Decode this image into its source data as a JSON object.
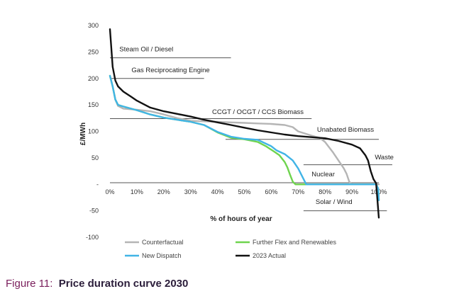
{
  "figure_caption": {
    "number": "Figure 11:",
    "title": "Price duration curve 2030"
  },
  "colors": {
    "counterfactual": "#b5b5b5",
    "further_flex": "#6fd44e",
    "new_dispatch": "#41b4e6",
    "actual_2023": "#111111",
    "caption_number": "#7a1f5c",
    "caption_title": "#2b1d3a"
  },
  "chart_data": {
    "type": "line",
    "title": "",
    "xlabel": "% of hours of year",
    "ylabel": "£/MWh",
    "xlim": [
      0,
      100
    ],
    "ylim": [
      -100,
      300
    ],
    "x_ticks": [
      "0%",
      "10%",
      "20%",
      "30%",
      "40%",
      "50%",
      "60%",
      "70%",
      "80%",
      "90%",
      "100%"
    ],
    "y_ticks": [
      "300",
      "250",
      "200",
      "150",
      "100",
      "50",
      "-",
      "-50",
      "-100"
    ],
    "grid": false,
    "legend_position": "bottom",
    "series": [
      {
        "name": "Counterfactual",
        "color": "#b5b5b5",
        "points": [
          [
            0,
            205
          ],
          [
            1,
            185
          ],
          [
            2,
            160
          ],
          [
            3,
            148
          ],
          [
            5,
            143
          ],
          [
            10,
            141
          ],
          [
            15,
            138
          ],
          [
            20,
            132
          ],
          [
            25,
            125
          ],
          [
            30,
            120
          ],
          [
            35,
            119
          ],
          [
            40,
            118
          ],
          [
            45,
            117
          ],
          [
            50,
            116
          ],
          [
            55,
            115
          ],
          [
            60,
            114
          ],
          [
            65,
            112
          ],
          [
            68,
            108
          ],
          [
            70,
            100
          ],
          [
            75,
            92
          ],
          [
            78,
            88
          ],
          [
            80,
            80
          ],
          [
            83,
            60
          ],
          [
            85,
            45
          ],
          [
            87,
            30
          ],
          [
            88,
            20
          ],
          [
            89,
            5
          ],
          [
            90,
            0
          ],
          [
            100,
            0
          ]
        ]
      },
      {
        "name": "Further Flex and Renewables",
        "color": "#6fd44e",
        "points": [
          [
            0,
            205
          ],
          [
            1,
            185
          ],
          [
            2,
            160
          ],
          [
            3,
            150
          ],
          [
            5,
            147
          ],
          [
            10,
            140
          ],
          [
            15,
            132
          ],
          [
            20,
            126
          ],
          [
            25,
            122
          ],
          [
            30,
            118
          ],
          [
            35,
            112
          ],
          [
            40,
            98
          ],
          [
            45,
            88
          ],
          [
            50,
            85
          ],
          [
            55,
            80
          ],
          [
            58,
            72
          ],
          [
            61,
            62
          ],
          [
            63,
            55
          ],
          [
            65,
            42
          ],
          [
            66,
            32
          ],
          [
            67,
            18
          ],
          [
            68,
            5
          ],
          [
            69,
            0
          ],
          [
            99,
            0
          ],
          [
            99.8,
            -8
          ],
          [
            100,
            -30
          ]
        ]
      },
      {
        "name": "New Dispatch",
        "color": "#41b4e6",
        "points": [
          [
            0,
            205
          ],
          [
            1,
            185
          ],
          [
            2,
            160
          ],
          [
            3,
            150
          ],
          [
            5,
            147
          ],
          [
            10,
            140
          ],
          [
            15,
            132
          ],
          [
            20,
            126
          ],
          [
            25,
            122
          ],
          [
            30,
            118
          ],
          [
            35,
            112
          ],
          [
            40,
            99
          ],
          [
            45,
            90
          ],
          [
            50,
            86
          ],
          [
            55,
            84
          ],
          [
            60,
            72
          ],
          [
            62,
            64
          ],
          [
            65,
            57
          ],
          [
            68,
            45
          ],
          [
            70,
            30
          ],
          [
            72,
            10
          ],
          [
            73,
            0
          ],
          [
            99,
            0
          ],
          [
            99.8,
            -8
          ],
          [
            100,
            -30
          ]
        ]
      },
      {
        "name": "2023 Actual",
        "color": "#111111",
        "points": [
          [
            0,
            293
          ],
          [
            0.5,
            258
          ],
          [
            1,
            222
          ],
          [
            2,
            196
          ],
          [
            3,
            185
          ],
          [
            5,
            175
          ],
          [
            8,
            165
          ],
          [
            10,
            158
          ],
          [
            15,
            145
          ],
          [
            20,
            138
          ],
          [
            25,
            133
          ],
          [
            30,
            128
          ],
          [
            35,
            122
          ],
          [
            40,
            117
          ],
          [
            45,
            112
          ],
          [
            50,
            107
          ],
          [
            55,
            102
          ],
          [
            60,
            98
          ],
          [
            65,
            94
          ],
          [
            70,
            91
          ],
          [
            75,
            89
          ],
          [
            80,
            87
          ],
          [
            85,
            82
          ],
          [
            90,
            75
          ],
          [
            93,
            68
          ],
          [
            95,
            55
          ],
          [
            96,
            45
          ],
          [
            97,
            25
          ],
          [
            98,
            10
          ],
          [
            99,
            2
          ],
          [
            100,
            -63
          ]
        ]
      }
    ],
    "annotations": [
      {
        "text": "Steam Oil / Diesel",
        "label_x": 3.5,
        "label_y": 251,
        "line_x": [
          0,
          45
        ],
        "line_y": 239
      },
      {
        "text": "Gas Reciprocating Engine",
        "label_x": 8,
        "label_y": 212,
        "line_x": [
          0,
          35
        ],
        "line_y": 200
      },
      {
        "text": "CCGT / OCGT / CCS Biomass",
        "label_x": 38,
        "label_y": 133,
        "line_x": [
          0,
          75
        ],
        "line_y": 124
      },
      {
        "text": "Unabated Biomass",
        "label_x": 77,
        "label_y": 99,
        "line_x": [
          43,
          100
        ],
        "line_y": 85
      },
      {
        "text": "Waste",
        "label_x": 98.5,
        "label_y": 47,
        "line_x": [
          72,
          105
        ],
        "line_y": 37
      },
      {
        "text": "Nuclear",
        "label_x": 75,
        "label_y": 15,
        "line_x": [
          0,
          100
        ],
        "line_y": 3
      },
      {
        "text": "Solar / Wind",
        "label_x": 76.5,
        "label_y": -37,
        "line_x": [
          72,
          103
        ],
        "line_y": -50
      }
    ]
  }
}
